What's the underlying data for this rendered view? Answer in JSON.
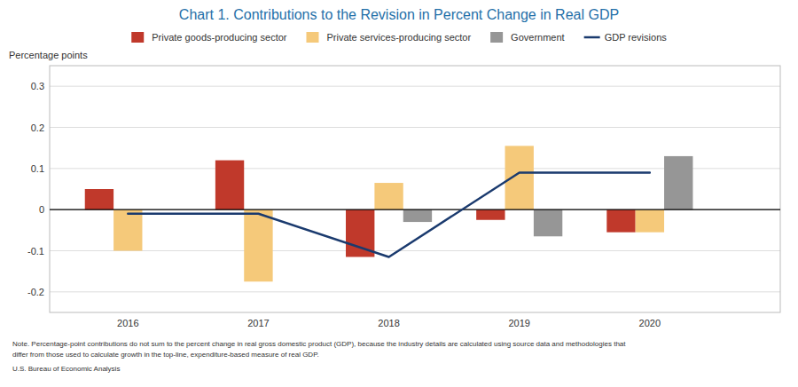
{
  "chart_data": {
    "type": "bar",
    "title": "Chart 1. Contributions to the Revision in Percent Change in Real GDP",
    "y_label": "Percentage points",
    "x": [
      2016,
      2017,
      2018,
      2019,
      2020
    ],
    "xlim": [
      2015.4,
      2021.0
    ],
    "xticks": [
      2016,
      2017,
      2018,
      2019,
      2020
    ],
    "ylim": [
      -0.25,
      0.35
    ],
    "yticks": [
      -0.2,
      -0.1,
      0,
      0.1,
      0.2,
      0.3
    ],
    "grid": true,
    "legend": "top",
    "series": [
      {
        "name": "Private goods-producing sector",
        "color": "#c0392b",
        "values": [
          0.05,
          0.12,
          -0.115,
          -0.025,
          -0.055
        ]
      },
      {
        "name": "Private services-producing sector",
        "color": "#f5c97a",
        "values": [
          -0.1,
          -0.175,
          0.065,
          0.155,
          -0.055
        ]
      },
      {
        "name": "Government",
        "color": "#969696",
        "values": [
          0.0,
          0.0,
          -0.03,
          -0.065,
          0.13
        ]
      },
      {
        "name": "GDP revisions",
        "type": "line",
        "color": "#1a3a6e",
        "values": [
          -0.01,
          -0.01,
          -0.115,
          0.09,
          0.09
        ]
      }
    ],
    "annotations": [
      "Note. Percentage-point contributions do not sum to the percent change in real gross domestic product (GDP), because the industry details are calculated using source data and methodologies that",
      "differ from those used to calculate growth in the top-line, expenditure-based measure of real GDP.",
      "U.S. Bureau of Economic Analysis"
    ]
  }
}
